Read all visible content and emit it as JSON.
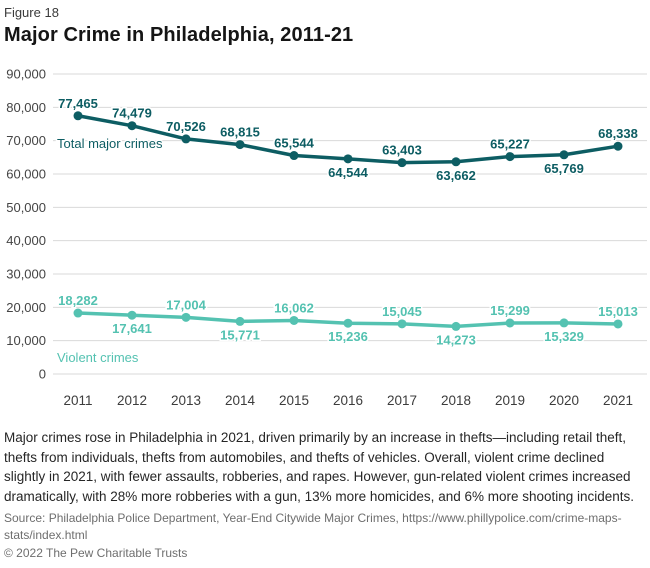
{
  "figure_label": "Figure 18",
  "title": "Major Crime in Philadelphia, 2011-21",
  "chart_data": {
    "type": "line",
    "x": [
      "2011",
      "2012",
      "2013",
      "2014",
      "2015",
      "2016",
      "2017",
      "2018",
      "2019",
      "2020",
      "2021"
    ],
    "series": [
      {
        "name": "Total major crimes",
        "inline_label": "Total major crimes",
        "color": "#0d5d63",
        "values": [
          77465,
          74479,
          70526,
          68815,
          65544,
          64544,
          63403,
          63662,
          65227,
          65769,
          68338
        ],
        "label_positions": [
          "above",
          "above",
          "above",
          "above",
          "above",
          "below",
          "above",
          "below",
          "above",
          "below",
          "above"
        ]
      },
      {
        "name": "Violent crimes",
        "inline_label": "Violent crimes",
        "color": "#54c2b1",
        "values": [
          18282,
          17641,
          17004,
          15771,
          16062,
          15236,
          15045,
          14273,
          15299,
          15329,
          15013
        ],
        "label_positions": [
          "above",
          "below",
          "above",
          "below",
          "above",
          "below",
          "above",
          "below",
          "above",
          "below",
          "above"
        ]
      }
    ],
    "ylim": [
      0,
      90000
    ],
    "ytick_interval": 10000,
    "ytick_labels": [
      "90,000",
      "80,000",
      "70,000",
      "60,000",
      "50,000",
      "40,000",
      "30,000",
      "20,000",
      "10,000",
      "0"
    ],
    "grid": "horizontal",
    "legend_position": "inline-on-chart"
  },
  "caption": "Major crimes rose in Philadelphia in 2021, driven primarily by an increase in thefts—including retail theft, thefts from individuals, thefts from automobiles, and thefts of vehicles. Overall, violent crime declined slightly in 2021, with fewer assaults, robberies, and rapes. However, gun-related violent crimes increased dramatically, with 28% more robberies with a gun, 13% more homicides, and 6% more shooting incidents.",
  "source": "Source: Philadelphia Police Department, Year-End Citywide Major Crimes, https://www.phillypolice.com/crime-maps-stats/index.html",
  "copyright": "© 2022 The Pew Charitable Trusts"
}
